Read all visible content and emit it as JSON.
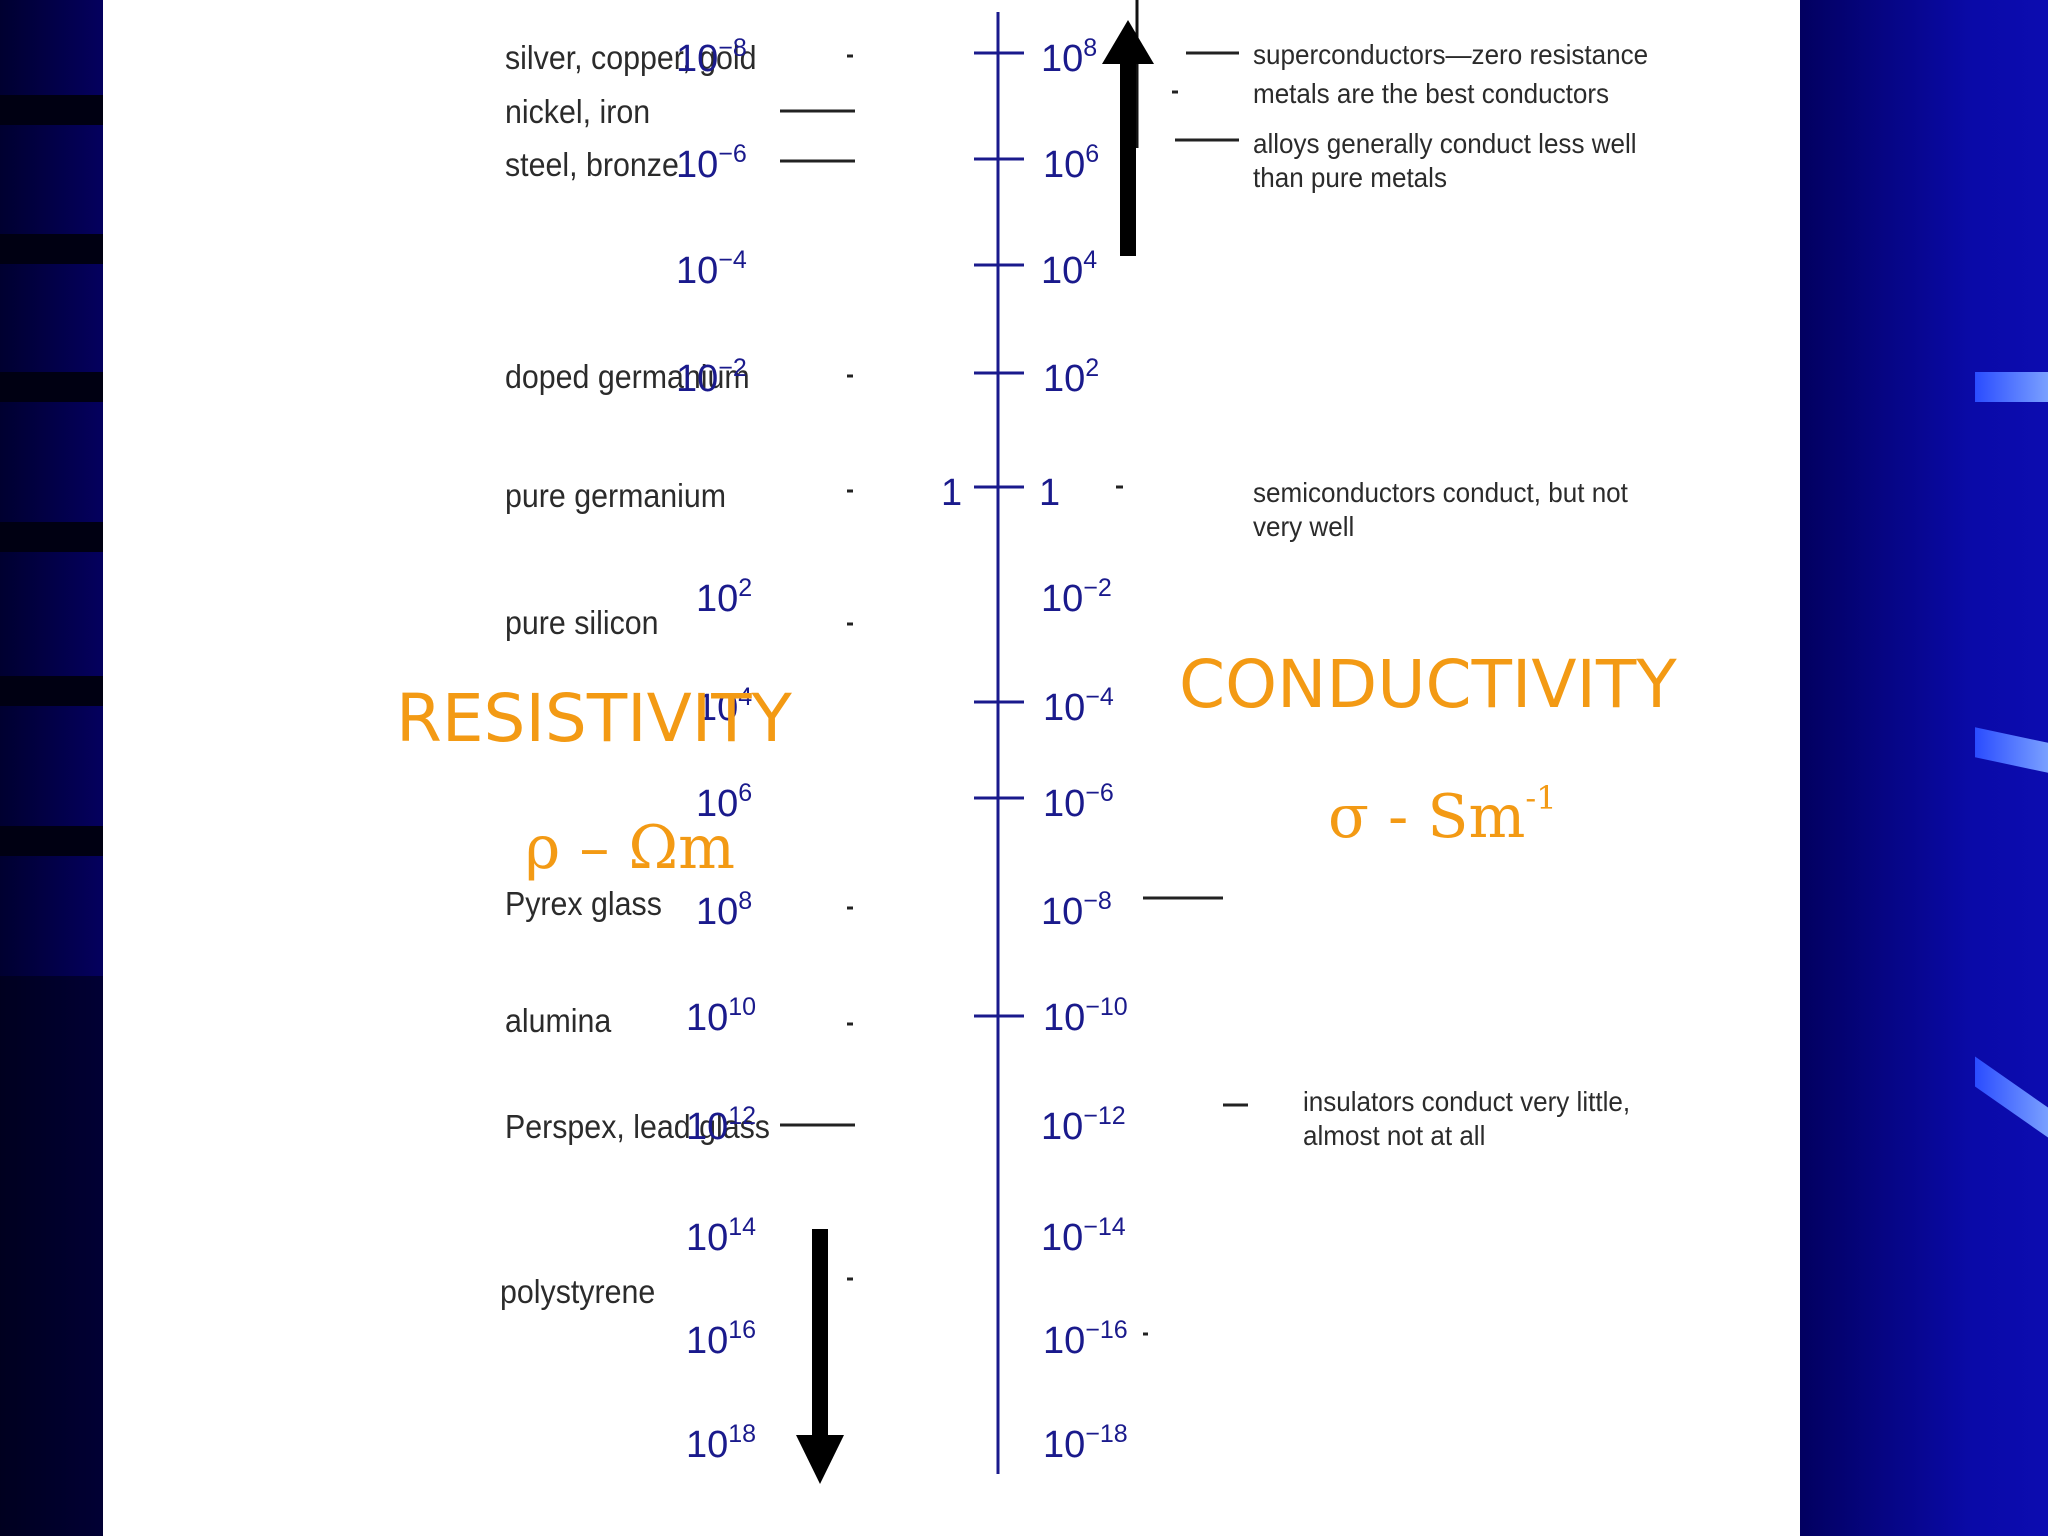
{
  "resistivity": {
    "title": "RESISTIVITY",
    "unit_symbol": "ρ – Ωm"
  },
  "conductivity": {
    "title": "CONDUCTIVITY",
    "unit_base": "σ - Sm",
    "unit_exponent": "-1"
  },
  "scale": [
    {
      "res_base": "10",
      "res_exp": "−8",
      "con_base": "10",
      "con_exp": "8",
      "tick": true
    },
    {
      "res_base": "10",
      "res_exp": "−6",
      "con_base": "10",
      "con_exp": "6",
      "tick": true
    },
    {
      "res_base": "10",
      "res_exp": "−4",
      "con_base": "10",
      "con_exp": "4",
      "tick": true
    },
    {
      "res_base": "10",
      "res_exp": "−2",
      "con_base": "10",
      "con_exp": "2",
      "tick": true
    },
    {
      "res_base": "1",
      "res_exp": "",
      "con_base": "1",
      "con_exp": "",
      "tick": true
    },
    {
      "res_base": "10",
      "res_exp": "2",
      "con_base": "10",
      "con_exp": "−2",
      "tick": false
    },
    {
      "res_base": "10",
      "res_exp": "4",
      "con_base": "10",
      "con_exp": "−4",
      "tick": true
    },
    {
      "res_base": "10",
      "res_exp": "6",
      "con_base": "10",
      "con_exp": "−6",
      "tick": true
    },
    {
      "res_base": "10",
      "res_exp": "8",
      "con_base": "10",
      "con_exp": "−8",
      "tick": false
    },
    {
      "res_base": "10",
      "res_exp": "10",
      "con_base": "10",
      "con_exp": "−10",
      "tick": true
    },
    {
      "res_base": "10",
      "res_exp": "12",
      "con_base": "10",
      "con_exp": "−12",
      "tick": false
    },
    {
      "res_base": "10",
      "res_exp": "14",
      "con_base": "10",
      "con_exp": "−14",
      "tick": false
    },
    {
      "res_base": "10",
      "res_exp": "16",
      "con_base": "10",
      "con_exp": "−16",
      "tick": false
    },
    {
      "res_base": "10",
      "res_exp": "18",
      "con_base": "10",
      "con_exp": "−18",
      "tick": false
    }
  ],
  "materials": [
    "silver, copper, gold",
    "nickel, iron",
    "steel, bronze",
    "doped germanium",
    "pure germanium",
    "pure silicon",
    "Pyrex glass",
    "alumina",
    "Perspex, lead glass",
    "polystyrene"
  ],
  "notes": [
    "superconductors—zero resistance",
    "metals are the best conductors",
    "alloys generally conduct less well\nthan pure metals",
    "semiconductors conduct, but not\nvery well",
    "insulators conduct very little,\nalmost not at all"
  ],
  "colors": {
    "accent": "#f39a14",
    "axis": "#1a1a8c",
    "text": "#2b2b2b",
    "background": "#05006e"
  }
}
